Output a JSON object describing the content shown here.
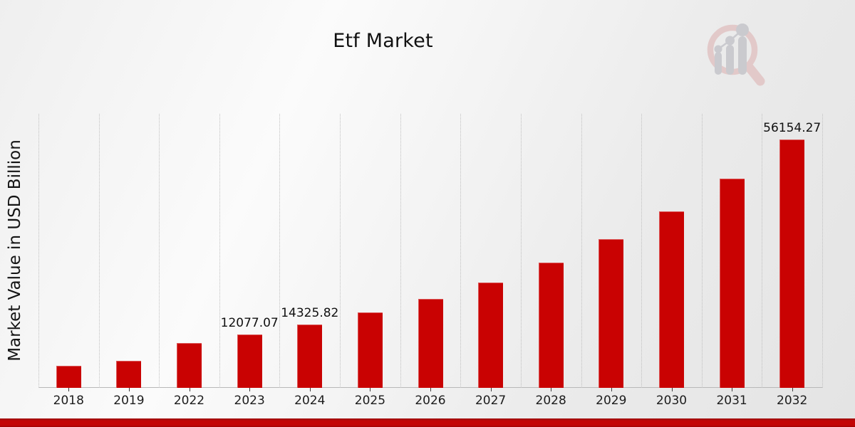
{
  "header": {
    "title": "Etf Market"
  },
  "watermark": {
    "icon": "magnifier-bar-chart-logo"
  },
  "chart_data": {
    "type": "bar",
    "title": "Etf Market",
    "xlabel": "",
    "ylabel": "Market Value in USD Billion",
    "categories": [
      "2018",
      "2019",
      "2022",
      "2023",
      "2024",
      "2025",
      "2026",
      "2027",
      "2028",
      "2029",
      "2030",
      "2031",
      "2032"
    ],
    "values": [
      5040,
      6165,
      10185,
      12077.07,
      14325.82,
      16993,
      20157,
      23910,
      28361,
      33641,
      39904,
      47333,
      56154.27
    ],
    "bar_labels": [
      "",
      "",
      "",
      "12077.07",
      "14325.82",
      "",
      "",
      "",
      "",
      "",
      "",
      "",
      "56154.27"
    ],
    "ylim": [
      0,
      62000
    ],
    "grid": "vertical-dotted",
    "legend": "none",
    "bar_color": "#c90202",
    "accent_color": "#c30505"
  }
}
